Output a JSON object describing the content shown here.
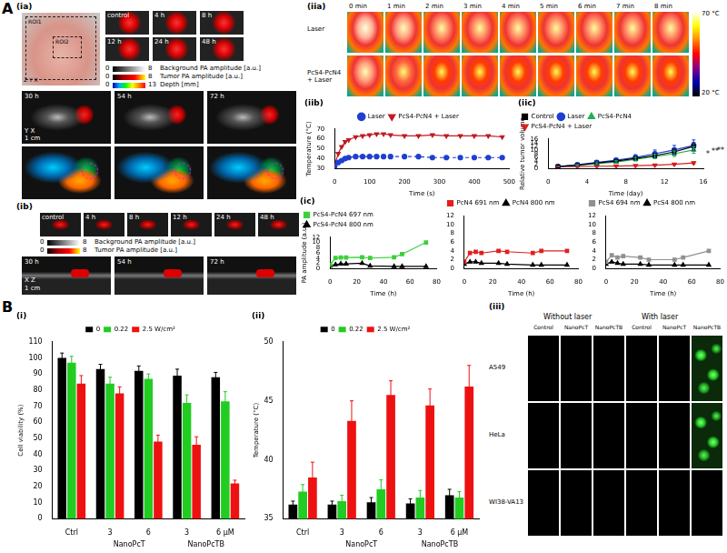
{
  "panels": {
    "A": "A",
    "B": "B",
    "ia": {
      "label": "(ia)",
      "roi": [
        "ROI1",
        "ROI2"
      ],
      "axes": [
        "Z",
        "Y",
        "X"
      ],
      "thumbs": [
        "control",
        "4 h",
        "8 h",
        "12 h",
        "24 h",
        "48 h"
      ],
      "frames": [
        "30 h",
        "54 h",
        "72 h"
      ],
      "colorbars": [
        {
          "label": "Background PA amplitude [a.u.]",
          "min": 0,
          "max": 8
        },
        {
          "label": "Tumor PA amplitude [a.u.]",
          "min": 0,
          "max": 8
        },
        {
          "label": "Depth [mm]",
          "min": 0,
          "max": 13
        }
      ],
      "scale": "1 cm",
      "map_axes": [
        "Y",
        "X"
      ]
    },
    "ib": {
      "label": "(ib)",
      "thumbs": [
        "control",
        "4 h",
        "8 h",
        "12 h",
        "24 h",
        "48 h"
      ],
      "frames": [
        "30 h",
        "54 h",
        "72 h"
      ],
      "colorbars": [
        {
          "label": "Background PA amplitude [a.u.]",
          "min": 0,
          "max": 8
        },
        {
          "label": "Tumor PA amplitude [a.u.]",
          "min": 0,
          "max": 8
        }
      ],
      "scale": "1 cm",
      "map_axes": [
        "X",
        "Z"
      ]
    },
    "iia": {
      "label": "(iia)",
      "times": [
        "0 min",
        "1 min",
        "2 min",
        "3 min",
        "4 min",
        "5 min",
        "6 min",
        "7 min",
        "8 min"
      ],
      "rows": [
        "Laser",
        "PcS4-PcN4 + Laser"
      ],
      "colorbar": {
        "max": "70 °C",
        "min": "20 °C"
      }
    },
    "iii": {
      "label": "(iii)",
      "groups": [
        "Without laser",
        "With laser"
      ],
      "columns": [
        "Control",
        "NanoPcT",
        "NanoPcTB"
      ],
      "rows": [
        "A549",
        "HeLa",
        "WI38-VA13"
      ],
      "fluorescent": [
        [
          false,
          false,
          false,
          false,
          false,
          true
        ],
        [
          false,
          false,
          false,
          false,
          false,
          true
        ],
        [
          false,
          false,
          false,
          false,
          false,
          false
        ]
      ]
    }
  },
  "chart_data": [
    {
      "type": "line",
      "title": "(iib)",
      "xlabel": "Time (s)",
      "ylabel": "Temperature (°C)",
      "x": [
        0,
        10,
        20,
        30,
        40,
        60,
        80,
        100,
        120,
        140,
        160,
        200,
        240,
        280,
        320,
        360,
        400,
        440,
        480
      ],
      "xlim": [
        0,
        500
      ],
      "xticks": [
        0,
        100,
        200,
        300,
        400,
        500
      ],
      "ylim": [
        30,
        70
      ],
      "yticks": [
        30,
        40,
        50,
        60,
        70
      ],
      "grid": false,
      "legend": "top",
      "series": [
        {
          "name": "Laser",
          "color": "#1f3fd1",
          "marker": "circle",
          "line_style": "dashed",
          "values": [
            32,
            36,
            38,
            40,
            41,
            42,
            42,
            42,
            42,
            42,
            42,
            42,
            42,
            41,
            41,
            41,
            41,
            41,
            41
          ]
        },
        {
          "name": "PcS4-PcN4 + Laser",
          "color": "#c0181f",
          "marker": "triangle_down",
          "line_style": "solid",
          "values": [
            33,
            45,
            52,
            57,
            59,
            62,
            63,
            64,
            65,
            65,
            64,
            63,
            63,
            64,
            63,
            63,
            63,
            63,
            62
          ]
        }
      ]
    },
    {
      "type": "line",
      "title": "(iic)",
      "xlabel": "Time (day)",
      "ylabel": "Relative tumor volume",
      "x": [
        1,
        3,
        5,
        7,
        9,
        11,
        13,
        15
      ],
      "xlim": [
        0,
        16
      ],
      "xticks": [
        0,
        4,
        8,
        12,
        16
      ],
      "ylim": [
        0,
        16
      ],
      "yticks": [
        0,
        2,
        4,
        6,
        8,
        10,
        12,
        14,
        16
      ],
      "grid": false,
      "legend": "upper left",
      "annotations": [
        "*",
        "**",
        "**"
      ],
      "series": [
        {
          "name": "Control",
          "color": "#000000",
          "marker": "square",
          "line_style": "solid",
          "values": [
            1,
            1.8,
            3,
            4,
            5.5,
            7,
            9,
            12
          ],
          "errors": [
            0,
            0.3,
            0.5,
            0.8,
            1,
            1.2,
            1.5,
            2
          ]
        },
        {
          "name": "Laser",
          "color": "#1f3fd1",
          "marker": "circle",
          "line_style": "solid",
          "values": [
            1,
            2,
            3.2,
            4.5,
            6,
            8,
            10,
            12.5
          ],
          "errors": [
            0,
            0.4,
            0.6,
            1,
            1.5,
            2,
            2.5,
            3
          ]
        },
        {
          "name": "PcS4-PcN4",
          "color": "#22b14c",
          "marker": "triangle",
          "line_style": "solid",
          "values": [
            1,
            1.7,
            2.6,
            3.5,
            5,
            6.5,
            8,
            10
          ],
          "errors": [
            0,
            0.3,
            0.5,
            0.7,
            1,
            1.2,
            1.5,
            1.8
          ]
        },
        {
          "name": "PcS4-PcN4 + Laser",
          "color": "#d42020",
          "marker": "triangle_down",
          "line_style": "solid",
          "values": [
            1,
            1,
            1.2,
            1.3,
            1.5,
            1.8,
            2.3,
            3
          ],
          "errors": [
            0,
            0.1,
            0.2,
            0.2,
            0.3,
            0.4,
            0.5,
            0.6
          ]
        }
      ]
    },
    {
      "type": "line",
      "title": "(ic)",
      "xlabel": "Time (h)",
      "ylabel": "PA amplitude (a.u.)",
      "x": [
        0,
        4,
        8,
        12,
        24,
        30,
        48,
        54,
        72
      ],
      "xlim": [
        0,
        80
      ],
      "xticks": [
        0,
        20,
        40,
        60,
        80
      ],
      "ylim": [
        0,
        12
      ],
      "yticks": [
        0,
        2,
        4,
        6,
        8,
        10,
        12
      ],
      "grid": false,
      "legend": "upper left",
      "series": [
        {
          "name": "PcS4-PcN4 697 nm",
          "color": "#3ccf3c",
          "marker": "square",
          "line_style": "solid",
          "values": [
            1.5,
            4,
            4.2,
            4.2,
            4.3,
            4,
            4.3,
            5.5,
            10
          ]
        },
        {
          "name": "PcS4-PcN4 800 nm",
          "color": "#000000",
          "marker": "triangle",
          "line_style": "solid",
          "values": [
            1,
            1.5,
            1.8,
            1.8,
            2,
            1,
            0.8,
            0.8,
            0.8
          ]
        }
      ]
    },
    {
      "type": "line",
      "xlabel": "Time (h)",
      "x": [
        0,
        4,
        8,
        12,
        24,
        30,
        48,
        54,
        72
      ],
      "xlim": [
        0,
        80
      ],
      "xticks": [
        0,
        20,
        40,
        60,
        80
      ],
      "ylim": [
        0,
        12
      ],
      "yticks": [
        0,
        2,
        4,
        6,
        8,
        10,
        12
      ],
      "grid": false,
      "legend": "upper left",
      "series": [
        {
          "name": "PcN4 691 nm",
          "color": "#e02020",
          "marker": "square",
          "line_style": "solid",
          "values": [
            1.5,
            3.5,
            3.8,
            3.5,
            4,
            3.8,
            3.5,
            4,
            4
          ]
        },
        {
          "name": "PcN4 800 nm",
          "color": "#000000",
          "marker": "triangle",
          "line_style": "solid",
          "values": [
            1,
            1.5,
            1.5,
            1.2,
            1.2,
            1,
            0.8,
            0.8,
            0.8
          ]
        }
      ]
    },
    {
      "type": "line",
      "xlabel": "Time (h)",
      "x": [
        0,
        4,
        8,
        12,
        24,
        30,
        48,
        54,
        72
      ],
      "xlim": [
        0,
        80
      ],
      "xticks": [
        0,
        20,
        40,
        60,
        80
      ],
      "ylim": [
        0,
        12
      ],
      "yticks": [
        0,
        2,
        4,
        6,
        8,
        10,
        12
      ],
      "grid": false,
      "legend": "upper left",
      "series": [
        {
          "name": "PcS4 694 nm",
          "color": "#909090",
          "marker": "square",
          "line_style": "solid",
          "values": [
            1.5,
            3,
            2.5,
            2.8,
            2.5,
            2,
            2,
            2.5,
            4
          ]
        },
        {
          "name": "PcS4 800 nm",
          "color": "#000000",
          "marker": "triangle",
          "line_style": "solid",
          "values": [
            1,
            1.5,
            1.2,
            1,
            1,
            0.8,
            0.8,
            0.8,
            0.8
          ]
        }
      ]
    },
    {
      "type": "bar",
      "title": "(i)",
      "ylabel": "Cell viability (%)",
      "categories": [
        "Ctrl",
        "3",
        "6",
        "3",
        "6 μM"
      ],
      "groups": [
        {
          "label": "NanoPcT",
          "categories": [
            1,
            2
          ]
        },
        {
          "label": "NanoPcTB",
          "categories": [
            3,
            4
          ]
        }
      ],
      "ylim": [
        0,
        110
      ],
      "yticks": [
        0,
        10,
        20,
        30,
        40,
        50,
        60,
        70,
        80,
        90,
        100,
        110
      ],
      "grid": false,
      "legend": "top",
      "series": [
        {
          "name": "0",
          "color": "#000000",
          "values": [
            100,
            93,
            92,
            89,
            88
          ],
          "errors": [
            3,
            3,
            3,
            4,
            3
          ]
        },
        {
          "name": "0.22",
          "color": "#22cc22",
          "values": [
            97,
            84,
            87,
            72,
            73
          ],
          "errors": [
            4,
            4,
            3,
            5,
            6
          ]
        },
        {
          "name": "2.5 W/cm²",
          "color": "#ee1111",
          "values": [
            84,
            78,
            48,
            46,
            22
          ],
          "errors": [
            5,
            4,
            4,
            5,
            2
          ]
        }
      ]
    },
    {
      "type": "bar",
      "title": "(ii)",
      "ylabel": "Temperature (°C)",
      "categories": [
        "Ctrl",
        "3",
        "6",
        "3",
        "6 μM"
      ],
      "groups": [
        {
          "label": "NanoPcT",
          "categories": [
            1,
            2
          ]
        },
        {
          "label": "NanoPcTB",
          "categories": [
            3,
            4
          ]
        }
      ],
      "ylim": [
        35,
        50
      ],
      "yticks": [
        35,
        40,
        45,
        50
      ],
      "grid": false,
      "legend": "top",
      "series": [
        {
          "name": "0",
          "color": "#000000",
          "values": [
            36.2,
            36.2,
            36.4,
            36.3,
            37
          ],
          "errors": [
            0.3,
            0.3,
            0.4,
            0.4,
            0.5
          ]
        },
        {
          "name": "0.22",
          "color": "#22cc22",
          "values": [
            37.3,
            36.5,
            37.5,
            36.8,
            36.8
          ],
          "errors": [
            0.6,
            0.5,
            0.8,
            0.6,
            0.5
          ]
        },
        {
          "name": "2.5 W/cm²",
          "color": "#ee1111",
          "values": [
            38.5,
            43.3,
            45.5,
            44.6,
            46.2
          ],
          "errors": [
            1.3,
            1.7,
            1.2,
            1.4,
            1.8
          ]
        }
      ]
    }
  ]
}
